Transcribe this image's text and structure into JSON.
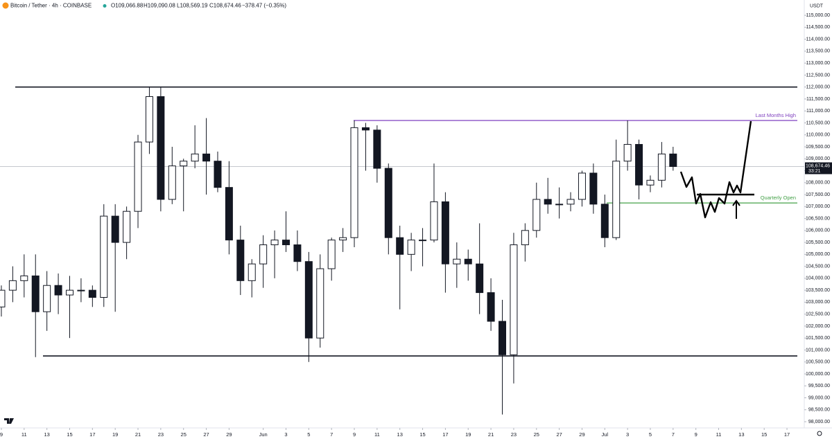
{
  "chart_data": {
    "type": "candlestick",
    "symbol": "Bitcoin / Tether · 4h · COINBASE",
    "open": "O109,066.88",
    "high": "H109,090.08",
    "low": "L108,569.19",
    "close": "C108,674.46",
    "change": "−378.47 (−0.35%)",
    "currency": "USDT",
    "x": [
      0,
      1,
      2,
      3,
      4,
      5,
      6,
      7,
      8,
      9,
      10,
      11,
      12,
      13,
      14,
      15,
      16,
      17,
      18,
      19,
      20,
      21,
      22,
      23,
      24,
      25,
      26,
      27,
      28,
      29,
      30,
      31,
      32,
      33,
      34,
      35,
      36,
      37,
      38,
      39,
      40,
      41,
      42,
      43,
      44,
      45,
      46,
      47,
      48,
      49,
      50,
      51,
      52,
      53,
      54,
      55,
      56,
      57,
      58,
      59
    ],
    "series": {
      "open": [
        102800,
        103500,
        103900,
        104100,
        102600,
        103700,
        103300,
        103500,
        103500,
        103200,
        106600,
        105500,
        106800,
        109700,
        111600,
        107300,
        108700,
        108900,
        109200,
        108900,
        107800,
        105600,
        103900,
        104600,
        105400,
        105600,
        105400,
        104700,
        101500,
        104400,
        105600,
        105700,
        110300,
        110200,
        108600,
        105700,
        105000,
        105600,
        105600,
        107200,
        104600,
        104800,
        104600,
        103400,
        102200,
        100800,
        105400,
        106000,
        107300,
        107100,
        107100,
        107300,
        108400,
        107100,
        105700,
        108900,
        109600,
        107900,
        108100,
        109200
      ],
      "high": [
        103700,
        104500,
        105000,
        105000,
        104300,
        104200,
        104100,
        104000,
        103700,
        107100,
        107100,
        107000,
        110000,
        112000,
        112000,
        109500,
        109000,
        110400,
        110700,
        109300,
        108900,
        106200,
        104800,
        105800,
        106000,
        106800,
        106000,
        105100,
        105000,
        105700,
        106100,
        110600,
        110500,
        110400,
        108800,
        106200,
        105900,
        106100,
        108800,
        107600,
        105500,
        105200,
        106300,
        104000,
        103100,
        105900,
        106300,
        108000,
        108200,
        107800,
        107600,
        108500,
        108800,
        107500,
        109800,
        110600,
        109800,
        108300,
        109700,
        109500
      ],
      "low": [
        102400,
        103000,
        103200,
        100700,
        101800,
        102500,
        101500,
        103000,
        102800,
        102800,
        102600,
        104800,
        106100,
        109200,
        106800,
        107100,
        106800,
        108600,
        107500,
        107600,
        105000,
        103300,
        103200,
        103600,
        104000,
        105100,
        104300,
        100500,
        101100,
        103900,
        105100,
        105300,
        108500,
        108000,
        105000,
        102700,
        104300,
        104500,
        105500,
        103400,
        103600,
        103900,
        102500,
        101800,
        98300,
        99600,
        104700,
        105700,
        106700,
        106500,
        106800,
        107000,
        106700,
        105300,
        105600,
        108500,
        107300,
        107600,
        107800,
        108500
      ],
      "close": [
        103500,
        103900,
        104100,
        102600,
        103700,
        103300,
        103500,
        103500,
        103200,
        106600,
        105500,
        106800,
        109700,
        111600,
        107300,
        108700,
        108900,
        109200,
        108900,
        107800,
        105600,
        103900,
        104600,
        105400,
        105600,
        105400,
        104700,
        101500,
        104400,
        105600,
        105700,
        110300,
        110200,
        108600,
        105700,
        105000,
        105600,
        105600,
        107200,
        104600,
        104800,
        104600,
        103400,
        102200,
        100800,
        105400,
        106000,
        107300,
        107100,
        107100,
        107300,
        108400,
        107100,
        105700,
        108900,
        109600,
        107900,
        108100,
        109200,
        108674.46
      ]
    },
    "up_color": "#ffffff",
    "down_color": "#131722",
    "wick_color": "#131722",
    "levels": [
      {
        "value": 112000,
        "color": "#131722"
      },
      {
        "value": 100750,
        "color": "#131722"
      },
      {
        "value": 110600,
        "label": "Last Months High",
        "color": "#7e3fbf"
      },
      {
        "value": 107150,
        "label": "Quarterly Open",
        "color": "#43a047"
      }
    ],
    "last": {
      "value": 108674.46,
      "label": "108,674.46",
      "countdown": "33:21"
    },
    "xlim": [
      -0.12,
      70.52
    ],
    "xticks": [
      {
        "value": 0,
        "label": "9"
      },
      {
        "value": 2,
        "label": "11"
      },
      {
        "value": 4,
        "label": "13"
      },
      {
        "value": 6,
        "label": "15"
      },
      {
        "value": 8,
        "label": "17"
      },
      {
        "value": 10,
        "label": "19"
      },
      {
        "value": 12,
        "label": "21"
      },
      {
        "value": 14,
        "label": "23"
      },
      {
        "value": 16,
        "label": "25"
      },
      {
        "value": 18,
        "label": "27"
      },
      {
        "value": 20,
        "label": "29"
      },
      {
        "value": 23,
        "label": "Jun"
      },
      {
        "value": 25,
        "label": "3"
      },
      {
        "value": 27,
        "label": "5"
      },
      {
        "value": 29,
        "label": "7"
      },
      {
        "value": 31,
        "label": "9"
      },
      {
        "value": 33,
        "label": "11"
      },
      {
        "value": 35,
        "label": "13"
      },
      {
        "value": 37,
        "label": "15"
      },
      {
        "value": 39,
        "label": "17"
      },
      {
        "value": 41,
        "label": "19"
      },
      {
        "value": 43,
        "label": "21"
      },
      {
        "value": 45,
        "label": "23"
      },
      {
        "value": 47,
        "label": "25"
      },
      {
        "value": 49,
        "label": "27"
      },
      {
        "value": 51,
        "label": "29"
      },
      {
        "value": 53,
        "label": "Jul"
      },
      {
        "value": 55,
        "label": "3"
      },
      {
        "value": 57,
        "label": "5"
      },
      {
        "value": 59,
        "label": "7"
      },
      {
        "value": 61,
        "label": "9"
      },
      {
        "value": 63,
        "label": "11"
      },
      {
        "value": 65,
        "label": "13"
      },
      {
        "value": 67,
        "label": "15"
      },
      {
        "value": 69,
        "label": "17"
      }
    ],
    "ylim": [
      97740,
      115640
    ],
    "yticks": [
      {
        "value": 98000,
        "label": "98,000.00"
      },
      {
        "value": 98500,
        "label": "98,500.00"
      },
      {
        "value": 99000,
        "label": "99,000.00"
      },
      {
        "value": 99500,
        "label": "99,500.00"
      },
      {
        "value": 100000,
        "label": "100,000.00"
      },
      {
        "value": 100500,
        "label": "100,500.00"
      },
      {
        "value": 101000,
        "label": "101,000.00"
      },
      {
        "value": 101500,
        "label": "101,500.00"
      },
      {
        "value": 102000,
        "label": "102,000.00"
      },
      {
        "value": 102500,
        "label": "102,500.00"
      },
      {
        "value": 103000,
        "label": "103,000.00"
      },
      {
        "value": 103500,
        "label": "103,500.00"
      },
      {
        "value": 104000,
        "label": "104,000.00"
      },
      {
        "value": 104500,
        "label": "104,500.00"
      },
      {
        "value": 105000,
        "label": "105,000.00"
      },
      {
        "value": 105500,
        "label": "105,500.00"
      },
      {
        "value": 106000,
        "label": "106,000.00"
      },
      {
        "value": 106500,
        "label": "106,500.00"
      },
      {
        "value": 107000,
        "label": "107,000.00"
      },
      {
        "value": 107500,
        "label": "107,500.00"
      },
      {
        "value": 108000,
        "label": "108,000.00"
      },
      {
        "value": 108500,
        "label": "108,500.00"
      },
      {
        "value": 109000,
        "label": "109,000.00"
      },
      {
        "value": 109500,
        "label": "109,500.00"
      },
      {
        "value": 110000,
        "label": "110,000.00"
      },
      {
        "value": 110500,
        "label": "110,500.00"
      },
      {
        "value": 111000,
        "label": "111,000.00"
      },
      {
        "value": 111500,
        "label": "111,500.00"
      },
      {
        "value": 112000,
        "label": "112,000.00"
      },
      {
        "value": 112500,
        "label": "112,500.00"
      },
      {
        "value": 113000,
        "label": "113,000.00"
      },
      {
        "value": 113500,
        "label": "113,500.00"
      },
      {
        "value": 114000,
        "label": "114,000.00"
      },
      {
        "value": 114500,
        "label": "114,500.00"
      },
      {
        "value": 115000,
        "label": "115,000.00"
      }
    ]
  }
}
